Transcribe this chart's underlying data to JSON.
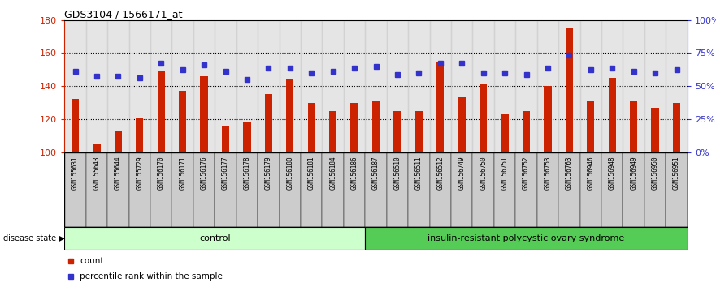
{
  "title": "GDS3104 / 1566171_at",
  "samples": [
    "GSM155631",
    "GSM155643",
    "GSM155644",
    "GSM155729",
    "GSM156170",
    "GSM156171",
    "GSM156176",
    "GSM156177",
    "GSM156178",
    "GSM156179",
    "GSM156180",
    "GSM156181",
    "GSM156184",
    "GSM156186",
    "GSM156187",
    "GSM156510",
    "GSM156511",
    "GSM156512",
    "GSM156749",
    "GSM156750",
    "GSM156751",
    "GSM156752",
    "GSM156753",
    "GSM156763",
    "GSM156946",
    "GSM156948",
    "GSM156949",
    "GSM156950",
    "GSM156951"
  ],
  "counts": [
    132,
    105,
    113,
    121,
    149,
    137,
    146,
    116,
    118,
    135,
    144,
    130,
    125,
    130,
    131,
    125,
    125,
    155,
    133,
    141,
    123,
    125,
    140,
    175,
    131,
    145,
    131,
    127,
    130
  ],
  "percentile_ranks": [
    149,
    146,
    146,
    145,
    154,
    150,
    153,
    149,
    144,
    151,
    151,
    148,
    149,
    151,
    152,
    147,
    148,
    154,
    154,
    148,
    148,
    147,
    151,
    159,
    150,
    151,
    149,
    148,
    150
  ],
  "control_count": 14,
  "disease_count": 15,
  "ylim_left": [
    100,
    180
  ],
  "ylim_right": [
    0,
    100
  ],
  "yticks_left": [
    100,
    120,
    140,
    160,
    180
  ],
  "yticks_right": [
    0,
    25,
    50,
    75,
    100
  ],
  "ytick_right_labels": [
    "0%",
    "25%",
    "50%",
    "75%",
    "100%"
  ],
  "bar_color": "#cc2200",
  "dot_color": "#3333cc",
  "control_bg": "#ccffcc",
  "disease_bg": "#55cc55",
  "label_bg": "#cccccc",
  "legend_count_color": "#cc2200",
  "legend_dot_color": "#3333cc",
  "disease_label": "insulin-resistant polycystic ovary syndrome",
  "control_label": "control",
  "disease_state_label": "disease state",
  "xlabel_count": "count",
  "xlabel_percentile": "percentile rank within the sample"
}
